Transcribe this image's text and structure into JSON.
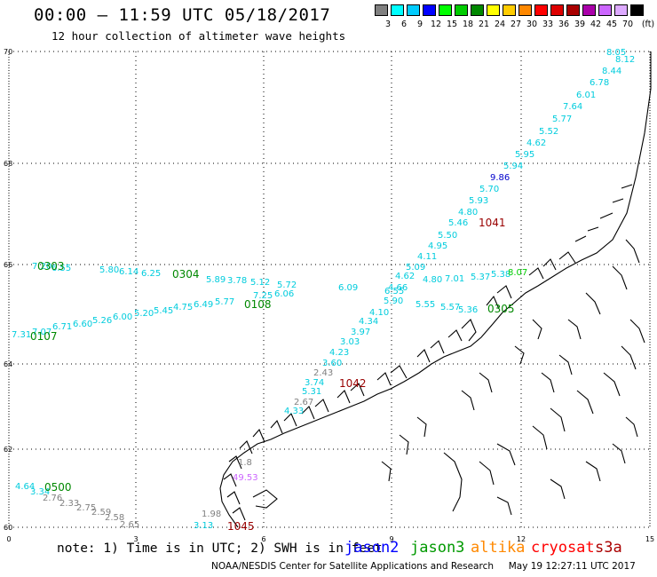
{
  "header": {
    "title": "00:00 – 11:59 UTC 05/18/2017",
    "subtitle": "12 hour collection of altimeter wave heights"
  },
  "colorbar": {
    "unit": "(ft)",
    "entries": [
      {
        "label": "3",
        "color": "#808080"
      },
      {
        "label": "6",
        "color": "#00ffff"
      },
      {
        "label": "9",
        "color": "#00ccff"
      },
      {
        "label": "12",
        "color": "#0000ff"
      },
      {
        "label": "15",
        "color": "#00ff00"
      },
      {
        "label": "18",
        "color": "#00cc00"
      },
      {
        "label": "21",
        "color": "#008800"
      },
      {
        "label": "24",
        "color": "#ffff00"
      },
      {
        "label": "27",
        "color": "#ffcc00"
      },
      {
        "label": "30",
        "color": "#ff8800"
      },
      {
        "label": "33",
        "color": "#ff0000"
      },
      {
        "label": "36",
        "color": "#dd0000"
      },
      {
        "label": "39",
        "color": "#aa0000"
      },
      {
        "label": "42",
        "color": "#aa00aa"
      },
      {
        "label": "45",
        "color": "#cc66ff"
      },
      {
        "label": "70",
        "color": "#ddaaff"
      },
      {
        "label": "",
        "color": "#000000"
      }
    ]
  },
  "axes": {
    "lat_labels": [
      "70",
      "68",
      "66",
      "64",
      "62",
      "60"
    ],
    "lon_labels": [
      "0",
      "3",
      "6",
      "9",
      "12",
      "15"
    ]
  },
  "passes": [
    {
      "label": "0303",
      "color": "#008800"
    },
    {
      "label": "0304",
      "color": "#008800"
    },
    {
      "label": "0108",
      "color": "#008800"
    },
    {
      "label": "0107",
      "color": "#008800"
    },
    {
      "label": "0305",
      "color": "#008800"
    },
    {
      "label": "0500",
      "color": "#008800"
    },
    {
      "label": "1041",
      "color": "#990000"
    },
    {
      "label": "1042",
      "color": "#990000"
    },
    {
      "label": "1045",
      "color": "#990000"
    }
  ],
  "wave_heights": [
    {
      "value": "8.05",
      "color": "#00ccdd"
    },
    {
      "value": "8.12",
      "color": "#00ccdd"
    },
    {
      "value": "8.44",
      "color": "#00ccdd"
    },
    {
      "value": "6.78",
      "color": "#00ccdd"
    },
    {
      "value": "6.01",
      "color": "#00ccdd"
    },
    {
      "value": "7.64",
      "color": "#00ccdd"
    },
    {
      "value": "5.77",
      "color": "#00ccdd"
    },
    {
      "value": "5.52",
      "color": "#00ccdd"
    },
    {
      "value": "4.62",
      "color": "#00ccdd"
    },
    {
      "value": "5.95",
      "color": "#00ccdd"
    },
    {
      "value": "5.94",
      "color": "#00ccdd"
    },
    {
      "value": "9.86",
      "color": "#0000cc"
    },
    {
      "value": "5.70",
      "color": "#00ccdd"
    },
    {
      "value": "5.93",
      "color": "#00ccdd"
    },
    {
      "value": "4.80",
      "color": "#00ccdd"
    },
    {
      "value": "5.46",
      "color": "#00ccdd"
    },
    {
      "value": "5.50",
      "color": "#00ccdd"
    },
    {
      "value": "4.95",
      "color": "#00ccdd"
    },
    {
      "value": "4.11",
      "color": "#00ccdd"
    },
    {
      "value": "5.09",
      "color": "#00ccdd"
    },
    {
      "value": "4.62",
      "color": "#00ccdd"
    },
    {
      "value": "4.66",
      "color": "#00ccdd"
    },
    {
      "value": "4.10",
      "color": "#00ccdd"
    },
    {
      "value": "4.34",
      "color": "#00ccdd"
    },
    {
      "value": "3.97",
      "color": "#00ccdd"
    },
    {
      "value": "3.03",
      "color": "#00ccdd"
    },
    {
      "value": "4.23",
      "color": "#00ccdd"
    },
    {
      "value": "3.60",
      "color": "#00ccdd"
    },
    {
      "value": "2.43",
      "color": "#808080"
    },
    {
      "value": "3.74",
      "color": "#00ccdd"
    },
    {
      "value": "5.31",
      "color": "#00ccdd"
    },
    {
      "value": "2.67",
      "color": "#808080"
    },
    {
      "value": "4.33",
      "color": "#00ccdd"
    },
    {
      "value": "7.20",
      "color": "#00ccdd"
    },
    {
      "value": "6.55",
      "color": "#00ccdd"
    },
    {
      "value": "5.80",
      "color": "#00ccdd"
    },
    {
      "value": "6.14",
      "color": "#00ccdd"
    },
    {
      "value": "6.25",
      "color": "#00ccdd"
    },
    {
      "value": "5.89",
      "color": "#00ccdd"
    },
    {
      "value": "3.78",
      "color": "#00ccdd"
    },
    {
      "value": "5.12",
      "color": "#00ccdd"
    },
    {
      "value": "5.72",
      "color": "#00ccdd"
    },
    {
      "value": "6.09",
      "color": "#00ccdd"
    },
    {
      "value": "6.55",
      "color": "#00ccdd"
    },
    {
      "value": "4.80",
      "color": "#00ccdd"
    },
    {
      "value": "7.01",
      "color": "#00ccdd"
    },
    {
      "value": "5.37",
      "color": "#00ccdd"
    },
    {
      "value": "5.38",
      "color": "#00ccdd"
    },
    {
      "value": "8.07",
      "color": "#00cc00"
    },
    {
      "value": "7.31",
      "color": "#00ccdd"
    },
    {
      "value": "7.07",
      "color": "#00ccdd"
    },
    {
      "value": "6.71",
      "color": "#00ccdd"
    },
    {
      "value": "6.60",
      "color": "#00ccdd"
    },
    {
      "value": "5.26",
      "color": "#00ccdd"
    },
    {
      "value": "6.00",
      "color": "#00ccdd"
    },
    {
      "value": "5.20",
      "color": "#00ccdd"
    },
    {
      "value": "5.45",
      "color": "#00ccdd"
    },
    {
      "value": "4.75",
      "color": "#00ccdd"
    },
    {
      "value": "6.49",
      "color": "#00ccdd"
    },
    {
      "value": "5.77",
      "color": "#00ccdd"
    },
    {
      "value": "7.25",
      "color": "#00ccdd"
    },
    {
      "value": "6.06",
      "color": "#00ccdd"
    },
    {
      "value": "5.90",
      "color": "#00ccdd"
    },
    {
      "value": "5.55",
      "color": "#00ccdd"
    },
    {
      "value": "5.57",
      "color": "#00ccdd"
    },
    {
      "value": "5.36",
      "color": "#00ccdd"
    },
    {
      "value": "4.64",
      "color": "#00ccdd"
    },
    {
      "value": "3.34",
      "color": "#00ccdd"
    },
    {
      "value": "2.76",
      "color": "#808080"
    },
    {
      "value": "2.33",
      "color": "#808080"
    },
    {
      "value": "2.75",
      "color": "#808080"
    },
    {
      "value": "2.59",
      "color": "#808080"
    },
    {
      "value": "2.58",
      "color": "#808080"
    },
    {
      "value": "2.65",
      "color": "#808080"
    },
    {
      "value": "3.13",
      "color": "#00ccdd"
    },
    {
      "value": "1.98",
      "color": "#808080"
    },
    {
      "value": "1.8",
      "color": "#808080"
    },
    {
      "value": "49.53",
      "color": "#cc66ff"
    },
    {
      "value": "3.04",
      "color": "#00ccdd"
    }
  ],
  "legend": {
    "note": "note: 1) Time is in UTC; 2) SWH is in feet",
    "satellites": [
      {
        "name": "jason2",
        "color": "#0000ff"
      },
      {
        "name": "jason3",
        "color": "#009900"
      },
      {
        "name": "altika",
        "color": "#ff8800"
      },
      {
        "name": "cryosat",
        "color": "#ff0000"
      },
      {
        "name": "s3a",
        "color": "#aa0000"
      }
    ]
  },
  "footer": {
    "credit": "NOAA/NESDIS Center for Satellite Applications and Research",
    "timestamp": "May 19 12:27:11 UTC 2017"
  }
}
